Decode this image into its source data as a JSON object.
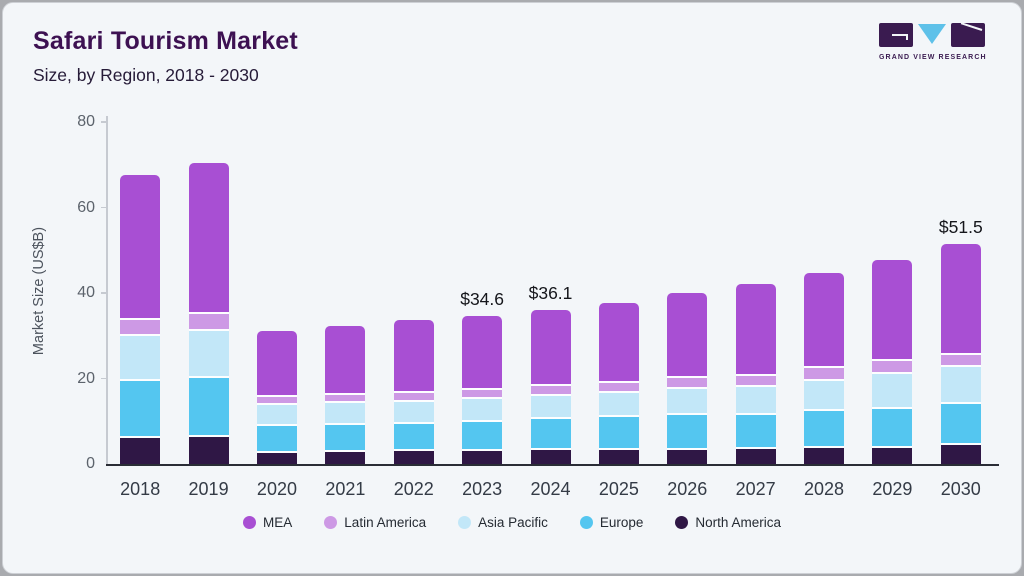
{
  "header": {
    "title": "Safari Tourism Market",
    "subtitle": "Size, by Region, 2018 - 2030"
  },
  "logo": {
    "brand": "GRAND VIEW RESEARCH",
    "dark_color": "#3a1b50",
    "accent_color": "#5ec1e9"
  },
  "chart_data": {
    "type": "bar",
    "stacked": true,
    "title": "Safari Tourism Market",
    "subtitle": "Size, by Region, 2018 - 2030",
    "ylabel": "Market Size (US$B)",
    "xlabel": "",
    "ylim": [
      0,
      80
    ],
    "yticks": [
      0,
      20,
      40,
      60,
      80
    ],
    "grid": false,
    "legend_position": "bottom",
    "categories": [
      "2018",
      "2019",
      "2020",
      "2021",
      "2022",
      "2023",
      "2024",
      "2025",
      "2026",
      "2027",
      "2028",
      "2029",
      "2030"
    ],
    "series": [
      {
        "name": "North America",
        "color": "#2f1745",
        "values": [
          6.3,
          6.5,
          2.8,
          2.9,
          3.1,
          3.3,
          3.4,
          3.5,
          3.5,
          3.7,
          3.8,
          3.9,
          4.5
        ]
      },
      {
        "name": "Europe",
        "color": "#54c6f0",
        "values": [
          13.2,
          13.6,
          6.1,
          6.3,
          6.4,
          6.6,
          7.2,
          7.6,
          8.1,
          7.8,
          8.6,
          9.0,
          9.6
        ]
      },
      {
        "name": "Asia Pacific",
        "color": "#c2e7f8",
        "values": [
          10.4,
          11.0,
          4.7,
          4.9,
          4.9,
          5.1,
          5.3,
          5.3,
          5.8,
          6.4,
          7.0,
          8.0,
          8.4
        ]
      },
      {
        "name": "Latin America",
        "color": "#cd99e5",
        "values": [
          3.2,
          3.5,
          1.6,
          1.6,
          1.8,
          1.7,
          1.9,
          2.0,
          2.2,
          2.1,
          2.5,
          2.6,
          2.5
        ]
      },
      {
        "name": "MEA",
        "color": "#a84fd3",
        "values": [
          34.5,
          35.9,
          16.0,
          16.6,
          17.4,
          17.9,
          18.3,
          19.3,
          20.3,
          22.0,
          22.7,
          24.2,
          26.5
        ]
      }
    ],
    "annotations": [
      {
        "category": "2023",
        "label": "$34.6"
      },
      {
        "category": "2024",
        "label": "$36.1"
      },
      {
        "category": "2030",
        "label": "$51.5"
      }
    ],
    "legend": [
      "MEA",
      "Latin America",
      "Asia Pacific",
      "Europe",
      "North America"
    ]
  }
}
